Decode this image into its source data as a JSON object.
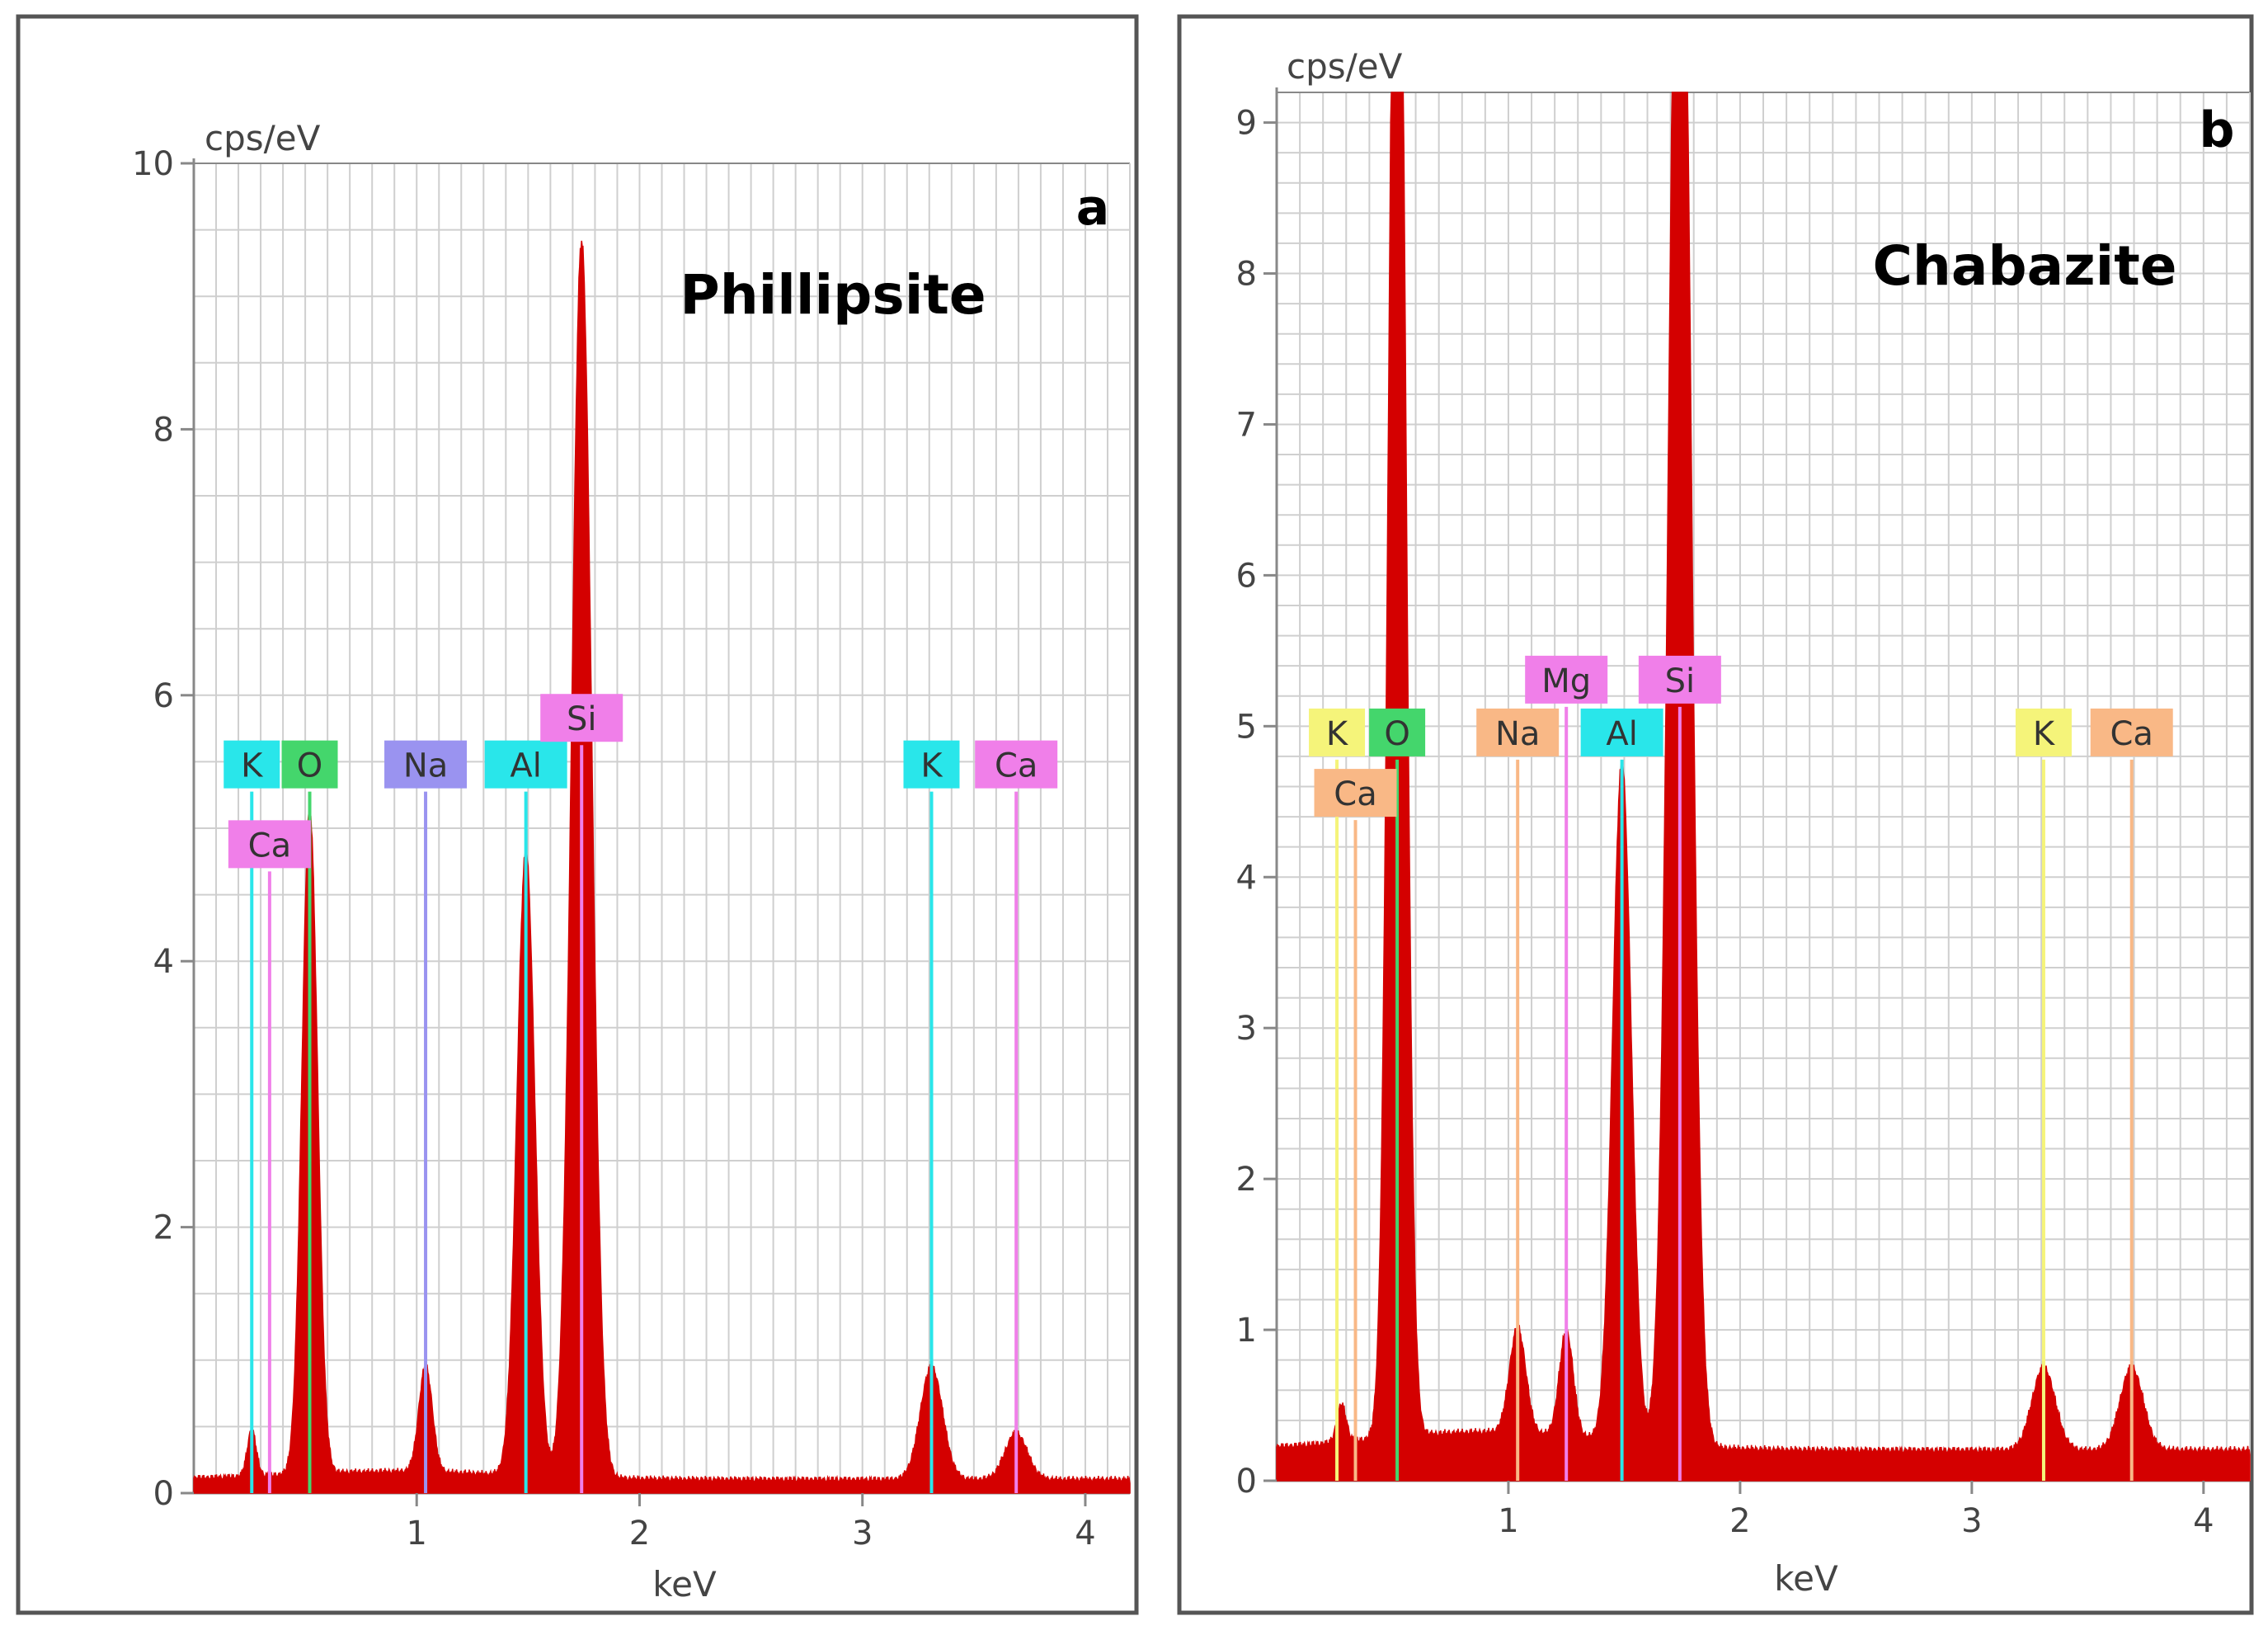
{
  "figure": {
    "type": "EDS spectra"
  },
  "chart_data": [
    {
      "type": "area",
      "panel_letter": "a",
      "title": "Phillipsite",
      "xlabel": "keV",
      "ylabel": "cps/eV",
      "xlim": [
        0.0,
        4.2
      ],
      "ylim": [
        0,
        10
      ],
      "xticks": [
        1,
        2,
        3,
        4
      ],
      "yticks": [
        0,
        2,
        4,
        6,
        8,
        10
      ],
      "grid": true,
      "background": 0.1,
      "peaks": [
        {
          "x": 0.52,
          "height": 5.0,
          "width": 0.035
        },
        {
          "x": 1.04,
          "height": 0.8,
          "width": 0.03
        },
        {
          "x": 1.49,
          "height": 4.7,
          "width": 0.04
        },
        {
          "x": 1.74,
          "height": 9.3,
          "width": 0.045
        },
        {
          "x": 3.31,
          "height": 0.85,
          "width": 0.05
        },
        {
          "x": 3.69,
          "height": 0.35,
          "width": 0.05
        },
        {
          "x": 0.26,
          "height": 0.35,
          "width": 0.02
        }
      ],
      "peak_labels": [
        {
          "text": "K",
          "x": 0.26,
          "y": 5.3,
          "line_top": 2.5,
          "color": "#29e6ea"
        },
        {
          "text": "O",
          "x": 0.52,
          "y": 5.3,
          "line_top": 5.0,
          "color": "#44d66c"
        },
        {
          "text": "Ca",
          "x": 0.34,
          "y": 4.7,
          "line_top": 2.6,
          "color": "#f07fe9"
        },
        {
          "text": "Na",
          "x": 1.04,
          "y": 5.3,
          "line_top": 0.8,
          "color": "#9a93f0"
        },
        {
          "text": "Al",
          "x": 1.49,
          "y": 5.3,
          "line_top": 4.7,
          "color": "#29e6ea"
        },
        {
          "text": "Si",
          "x": 1.74,
          "y": 5.65,
          "line_top": 5.4,
          "color": "#f07fe9"
        },
        {
          "text": "K",
          "x": 3.31,
          "y": 5.3,
          "line_top": 0.85,
          "color": "#29e6ea"
        },
        {
          "text": "Ca",
          "x": 3.69,
          "y": 5.3,
          "line_top": 0.35,
          "color": "#f07fe9"
        }
      ]
    },
    {
      "type": "area",
      "panel_letter": "b",
      "title": "Chabazite",
      "xlabel": "keV",
      "ylabel": "cps/eV",
      "xlim": [
        0.0,
        4.2
      ],
      "ylim": [
        0,
        9.2
      ],
      "xticks": [
        1,
        2,
        3,
        4
      ],
      "yticks": [
        0,
        1,
        2,
        3,
        4,
        5,
        6,
        7,
        8,
        9
      ],
      "grid": true,
      "background": 0.2,
      "peaks": [
        {
          "x": 0.52,
          "height": 12.0,
          "width": 0.035
        },
        {
          "x": 1.04,
          "height": 0.7,
          "width": 0.035
        },
        {
          "x": 1.25,
          "height": 0.7,
          "width": 0.03
        },
        {
          "x": 1.49,
          "height": 4.5,
          "width": 0.04
        },
        {
          "x": 1.74,
          "height": 12.0,
          "width": 0.045
        },
        {
          "x": 3.31,
          "height": 0.55,
          "width": 0.05
        },
        {
          "x": 3.69,
          "height": 0.55,
          "width": 0.05
        },
        {
          "x": 0.28,
          "height": 0.25,
          "width": 0.02
        }
      ],
      "peak_labels": [
        {
          "text": "K",
          "x": 0.26,
          "y": 4.8,
          "line_top": 4.7,
          "color": "#f5f47a"
        },
        {
          "text": "O",
          "x": 0.52,
          "y": 4.8,
          "line_top": 4.7,
          "color": "#44d66c"
        },
        {
          "text": "Ca",
          "x": 0.34,
          "y": 4.4,
          "line_top": 2.4,
          "color": "#f9b886"
        },
        {
          "text": "Na",
          "x": 1.04,
          "y": 4.8,
          "line_top": 4.7,
          "color": "#f9b886"
        },
        {
          "text": "Mg",
          "x": 1.25,
          "y": 5.15,
          "line_top": 5.0,
          "color": "#f07fe9"
        },
        {
          "text": "Al",
          "x": 1.49,
          "y": 4.8,
          "line_top": 4.7,
          "color": "#29e6ea"
        },
        {
          "text": "Si",
          "x": 1.74,
          "y": 5.15,
          "line_top": 5.0,
          "color": "#f07fe9"
        },
        {
          "text": "K",
          "x": 3.31,
          "y": 4.8,
          "line_top": 4.7,
          "color": "#f5f47a"
        },
        {
          "text": "Ca",
          "x": 3.69,
          "y": 4.8,
          "line_top": 2.4,
          "color": "#f9b886"
        }
      ]
    }
  ],
  "colors": {
    "spectrum": "#d40000",
    "grid": "#cfcfcf",
    "axis": "#888888",
    "frame": "#555555"
  }
}
